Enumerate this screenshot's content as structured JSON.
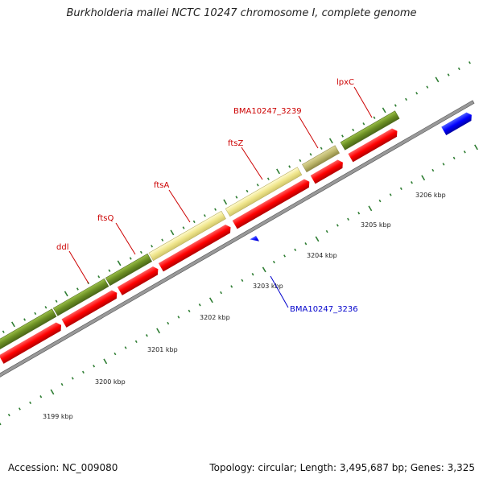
{
  "title": "Burkholderia mallei NCTC 10247 chromosome I, complete genome",
  "footer": {
    "accession": "Accession: NC_009080",
    "summary": "Topology: circular; Length: 3,495,687 bp; Genes: 3,325"
  },
  "kbp_labels": [
    "3199 kbp",
    "3200 kbp",
    "3201 kbp",
    "3202 kbp",
    "3203 kbp",
    "3204 kbp",
    "3205 kbp",
    "3206 kbp"
  ],
  "gene_labels": {
    "ddl": "ddl",
    "ftsQ": "ftsQ",
    "ftsA": "ftsA",
    "ftsZ": "ftsZ",
    "bma3239": "BMA10247_3239",
    "lpxC": "lpxC",
    "bma3236": "BMA10247_3236"
  },
  "colors": {
    "forward_cds_green": "#6b8e23",
    "forward_cds_light": "#f0e68c",
    "forward_cds_tan": "#bdb76b",
    "reverse_cds_red": "#ff0000",
    "reverse_blue": "#0000ff",
    "label_red": "#cc0000",
    "label_blue": "#0000cc",
    "tick_green": "#2e7d32"
  }
}
